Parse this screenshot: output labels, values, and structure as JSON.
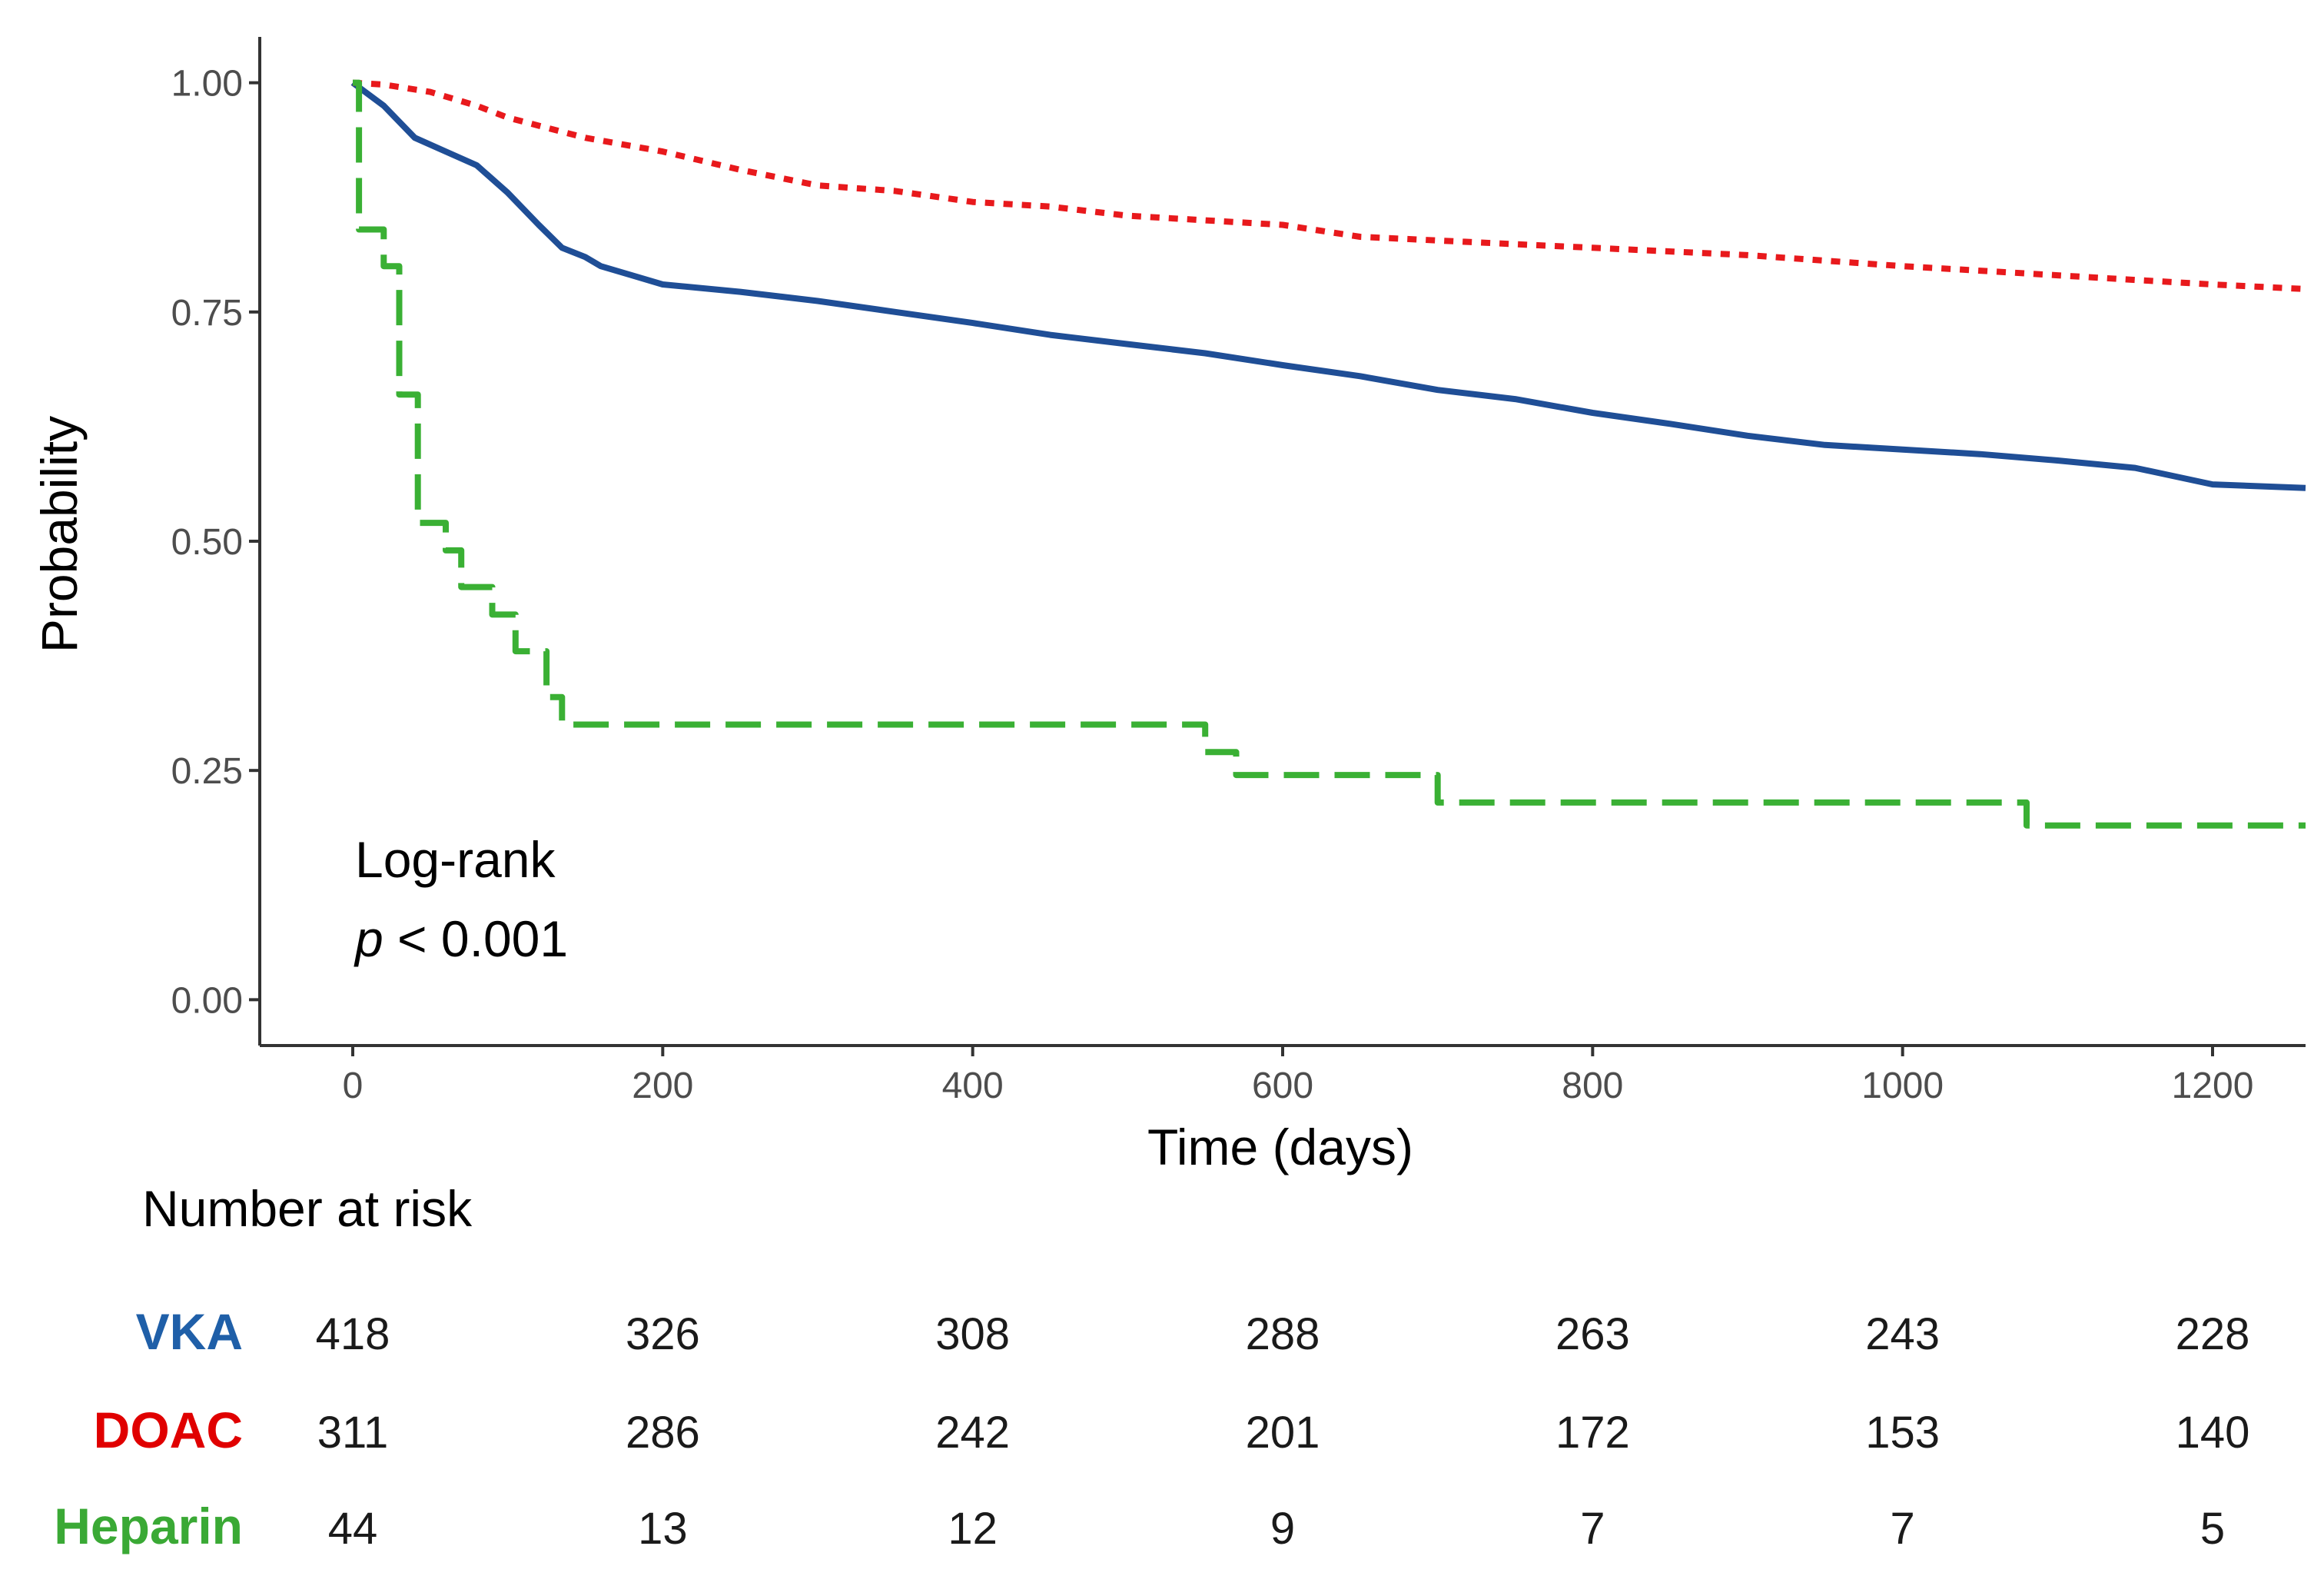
{
  "chart_data": {
    "type": "line",
    "title": "",
    "xlabel": "Time (days)",
    "ylabel": "Probability",
    "xlim": [
      -60,
      1260
    ],
    "ylim": [
      -0.05,
      1.05
    ],
    "xticks": [
      0,
      200,
      400,
      600,
      800,
      1000,
      1200
    ],
    "xtick_labels": [
      "0",
      "200",
      "400",
      "600",
      "800",
      "1000",
      "1200"
    ],
    "yticks": [
      0,
      0.25,
      0.5,
      0.75,
      1.0
    ],
    "ytick_labels": [
      "0.00",
      "0.25",
      "0.50",
      "0.75",
      "1.00"
    ],
    "grid": false,
    "legend": "none",
    "annotation": {
      "line1": "Log-rank",
      "p_symbol": "p",
      "p_rest": " < 0.001"
    },
    "series": [
      {
        "name": "VKA",
        "color": "#1f4e96",
        "dash": "solid",
        "points": [
          [
            0,
            1.0
          ],
          [
            20,
            0.975
          ],
          [
            40,
            0.94
          ],
          [
            60,
            0.925
          ],
          [
            80,
            0.91
          ],
          [
            100,
            0.88
          ],
          [
            120,
            0.845
          ],
          [
            135,
            0.82
          ],
          [
            150,
            0.81
          ],
          [
            160,
            0.8
          ],
          [
            180,
            0.79
          ],
          [
            200,
            0.78
          ],
          [
            250,
            0.772
          ],
          [
            300,
            0.762
          ],
          [
            350,
            0.75
          ],
          [
            400,
            0.738
          ],
          [
            450,
            0.725
          ],
          [
            500,
            0.715
          ],
          [
            550,
            0.705
          ],
          [
            600,
            0.692
          ],
          [
            650,
            0.68
          ],
          [
            700,
            0.665
          ],
          [
            750,
            0.655
          ],
          [
            800,
            0.64
          ],
          [
            850,
            0.628
          ],
          [
            900,
            0.615
          ],
          [
            950,
            0.605
          ],
          [
            1000,
            0.6
          ],
          [
            1050,
            0.595
          ],
          [
            1100,
            0.588
          ],
          [
            1150,
            0.58
          ],
          [
            1200,
            0.562
          ],
          [
            1260,
            0.558
          ]
        ]
      },
      {
        "name": "DOAC",
        "color": "#e8191c",
        "dash": "dotted",
        "points": [
          [
            0,
            1.0
          ],
          [
            20,
            0.998
          ],
          [
            50,
            0.99
          ],
          [
            80,
            0.975
          ],
          [
            100,
            0.962
          ],
          [
            150,
            0.94
          ],
          [
            200,
            0.925
          ],
          [
            250,
            0.905
          ],
          [
            300,
            0.888
          ],
          [
            350,
            0.882
          ],
          [
            400,
            0.87
          ],
          [
            450,
            0.865
          ],
          [
            500,
            0.855
          ],
          [
            600,
            0.845
          ],
          [
            650,
            0.832
          ],
          [
            700,
            0.828
          ],
          [
            750,
            0.824
          ],
          [
            800,
            0.82
          ],
          [
            900,
            0.812
          ],
          [
            1000,
            0.8
          ],
          [
            1050,
            0.795
          ],
          [
            1100,
            0.79
          ],
          [
            1150,
            0.785
          ],
          [
            1200,
            0.78
          ],
          [
            1260,
            0.775
          ]
        ]
      },
      {
        "name": "Heparin",
        "color": "#3ab034",
        "dash": "dashed",
        "step": true,
        "points": [
          [
            0,
            1.0
          ],
          [
            4,
            0.84
          ],
          [
            20,
            0.8
          ],
          [
            30,
            0.66
          ],
          [
            42,
            0.52
          ],
          [
            60,
            0.49
          ],
          [
            70,
            0.45
          ],
          [
            90,
            0.42
          ],
          [
            105,
            0.38
          ],
          [
            125,
            0.33
          ],
          [
            135,
            0.3
          ],
          [
            550,
            0.27
          ],
          [
            570,
            0.245
          ],
          [
            700,
            0.215
          ],
          [
            1080,
            0.19
          ],
          [
            1260,
            0.19
          ]
        ]
      }
    ],
    "risk_table": {
      "title": "Number at risk",
      "times": [
        0,
        200,
        400,
        600,
        800,
        1000,
        1200
      ],
      "rows": [
        {
          "group": "VKA",
          "color": "#1f5fa8",
          "values": [
            "418",
            "326",
            "308",
            "288",
            "263",
            "243",
            "228"
          ]
        },
        {
          "group": "DOAC",
          "color": "#e00000",
          "values": [
            "311",
            "286",
            "242",
            "201",
            "172",
            "153",
            "140"
          ]
        },
        {
          "group": "Heparin",
          "color": "#3aa935",
          "values": [
            "44",
            "13",
            "12",
            "9",
            "7",
            "7",
            "5"
          ]
        }
      ]
    }
  }
}
